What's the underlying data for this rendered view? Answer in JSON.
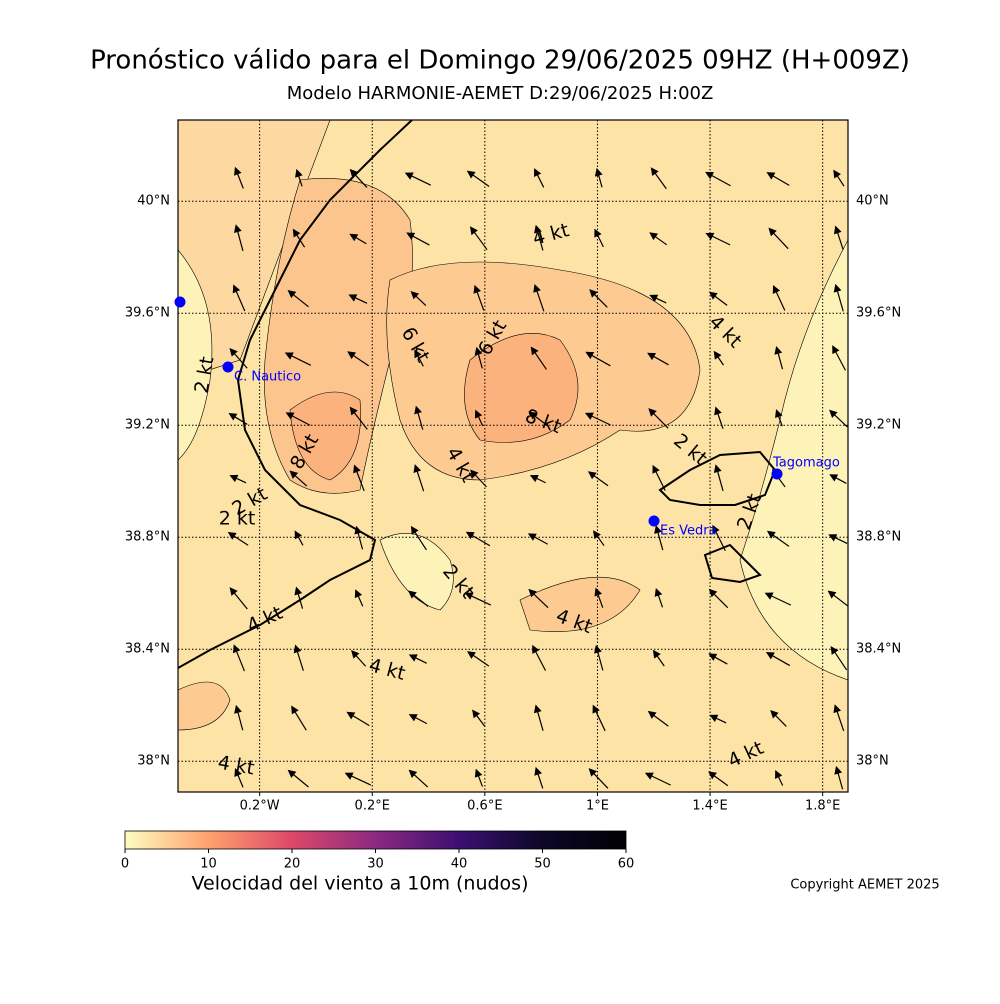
{
  "header": {
    "title": "Pronóstico válido para el Domingo 29/06/2025 09HZ (H+009Z)",
    "subtitle": "Modelo HARMONIE-AEMET D:29/06/2025 H:00Z"
  },
  "map": {
    "lonlim": [
      -0.49,
      1.89
    ],
    "latlim": [
      37.89,
      40.29
    ],
    "grid": true,
    "lon_ticks": [
      {
        "value": -0.2,
        "label": "0.2°W"
      },
      {
        "value": 0.2,
        "label": "0.2°E"
      },
      {
        "value": 0.6,
        "label": "0.6°E"
      },
      {
        "value": 1,
        "label": "1°E"
      },
      {
        "value": 1.4,
        "label": "1.4°E"
      },
      {
        "value": 1.8,
        "label": "1.8°E"
      }
    ],
    "lat_ticks": [
      {
        "value": 38,
        "label": "38°N"
      },
      {
        "value": 38.4,
        "label": "38.4°N"
      },
      {
        "value": 38.8,
        "label": "38.8°N"
      },
      {
        "value": 39.2,
        "label": "39.2°N"
      },
      {
        "value": 39.6,
        "label": "39.6°N"
      },
      {
        "value": 40,
        "label": "40°N"
      }
    ],
    "stations": [
      "C. Nautico",
      "Es Vedra",
      "Tagomago"
    ],
    "contour_labels": [
      "4 kt",
      "6 kt",
      "6 kt",
      "4 kt",
      "2 kt",
      "8 kt",
      "8 kt",
      "4 kt",
      "2 kt",
      "2 kt",
      "2 kt",
      "2 kt",
      "2 kt",
      "4 kt",
      "4 kt",
      "4 kt",
      "4 kt",
      "4 kt"
    ]
  },
  "colorbar": {
    "label": "Velocidad del viento a 10m (nudos)",
    "lim": [
      0,
      60
    ],
    "ticks": [
      0,
      10,
      20,
      30,
      40,
      50,
      60
    ]
  },
  "footer": {
    "copyright": "Copyright AEMET 2025"
  }
}
